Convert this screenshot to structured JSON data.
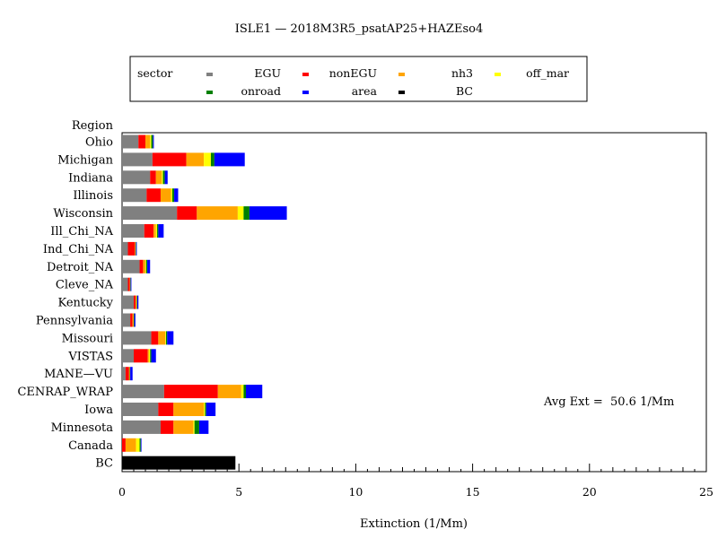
{
  "chart_data": {
    "type": "bar",
    "orientation": "horizontal",
    "stacked": true,
    "title": "ISLE1 — 2018M3R5_psatAP25+HAZEso4",
    "xlabel": "Extinction (1/Mm)",
    "ylabel": "Region",
    "xlim": [
      0,
      25
    ],
    "xticks": [
      0,
      5,
      10,
      15,
      20,
      25
    ],
    "grid": false,
    "annotation": "Avg Ext =  50.6 1/Mm",
    "legend": {
      "position": "top",
      "title": "sector"
    },
    "categories": [
      "Ohio",
      "Michigan",
      "Indiana",
      "Illinois",
      "Wisconsin",
      "Ill_Chi_NA",
      "Ind_Chi_NA",
      "Detroit_NA",
      "Cleve_NA",
      "Kentucky",
      "Pennsylvania",
      "Missouri",
      "VISTAS",
      "MANE—VU",
      "CENRAP_WRAP",
      "Iowa",
      "Minnesota",
      "Canada",
      "BC"
    ],
    "series": [
      {
        "name": "EGU",
        "color": "#808080",
        "values": [
          0.7,
          1.3,
          1.2,
          1.05,
          2.35,
          0.95,
          0.25,
          0.75,
          0.25,
          0.5,
          0.35,
          1.25,
          0.5,
          0.15,
          1.8,
          1.55,
          1.65,
          0.0,
          0.0
        ]
      },
      {
        "name": "nonEGU",
        "color": "#ff0000",
        "values": [
          0.3,
          1.45,
          0.25,
          0.6,
          0.85,
          0.4,
          0.3,
          0.15,
          0.08,
          0.08,
          0.1,
          0.3,
          0.6,
          0.15,
          2.3,
          0.65,
          0.55,
          0.15,
          0.0
        ]
      },
      {
        "name": "nh3",
        "color": "#ffa500",
        "values": [
          0.2,
          0.75,
          0.25,
          0.45,
          1.75,
          0.1,
          0.03,
          0.1,
          0.02,
          0.05,
          0.05,
          0.3,
          0.05,
          0.03,
          1.0,
          1.3,
          0.85,
          0.45,
          0.0
        ]
      },
      {
        "name": "off_mar",
        "color": "#ffff00",
        "values": [
          0.05,
          0.3,
          0.05,
          0.05,
          0.25,
          0.05,
          0.0,
          0.03,
          0.0,
          0.0,
          0.0,
          0.03,
          0.05,
          0.0,
          0.1,
          0.05,
          0.05,
          0.15,
          0.0
        ]
      },
      {
        "name": "onroad",
        "color": "#008000",
        "values": [
          0.07,
          0.15,
          0.08,
          0.08,
          0.25,
          0.05,
          0.02,
          0.05,
          0.02,
          0.02,
          0.02,
          0.05,
          0.05,
          0.02,
          0.1,
          0.05,
          0.2,
          0.05,
          0.0
        ]
      },
      {
        "name": "area",
        "color": "#0000ff",
        "values": [
          0.04,
          1.3,
          0.12,
          0.17,
          1.6,
          0.23,
          0.03,
          0.12,
          0.03,
          0.05,
          0.05,
          0.27,
          0.2,
          0.1,
          0.7,
          0.4,
          0.4,
          0.03,
          0.0
        ]
      },
      {
        "name": "BC",
        "color": "#000000",
        "values": [
          0,
          0,
          0,
          0,
          0,
          0,
          0,
          0,
          0,
          0,
          0,
          0,
          0,
          0,
          0,
          0,
          0,
          0,
          4.85
        ]
      }
    ]
  }
}
